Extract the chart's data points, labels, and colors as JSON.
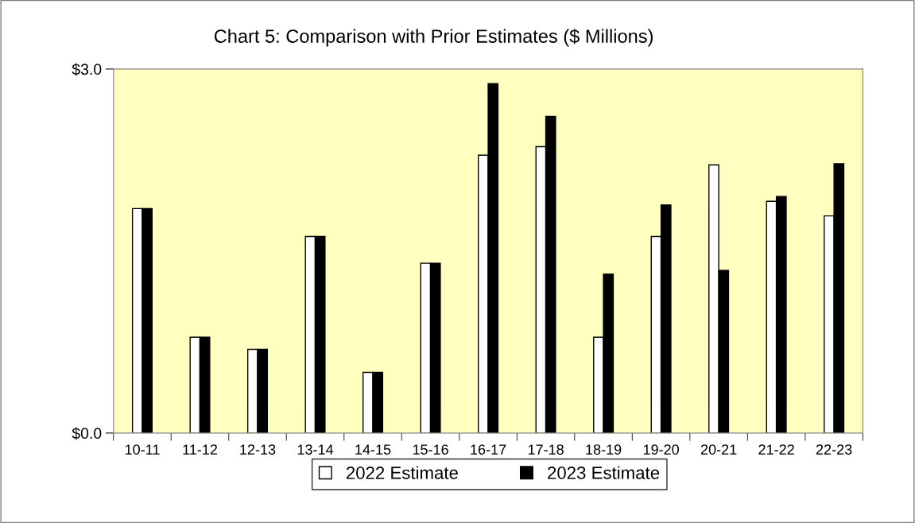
{
  "chart_data": {
    "type": "bar",
    "title": "Chart 5: Comparison with Prior Estimates ($ Millions)",
    "categories": [
      "10-11",
      "11-12",
      "12-13",
      "13-14",
      "14-15",
      "15-16",
      "16-17",
      "17-18",
      "18-19",
      "19-20",
      "20-21",
      "21-22",
      "22-23"
    ],
    "series": [
      {
        "name": "2022 Estimate",
        "color": "#ffffff",
        "values": [
          1.85,
          0.79,
          0.69,
          1.62,
          0.5,
          1.4,
          2.29,
          2.36,
          0.79,
          1.62,
          2.21,
          1.91,
          1.79
        ]
      },
      {
        "name": "2023 Estimate",
        "color": "#000000",
        "values": [
          1.85,
          0.79,
          0.69,
          1.62,
          0.5,
          1.4,
          2.88,
          2.61,
          1.31,
          1.88,
          1.34,
          1.95,
          2.22
        ]
      }
    ],
    "ylim": [
      0,
      3
    ],
    "yticks": [
      {
        "value": 0,
        "label": "$0.0"
      },
      {
        "value": 3,
        "label": "$3.0"
      }
    ],
    "grid": false,
    "legend": "bottom"
  }
}
